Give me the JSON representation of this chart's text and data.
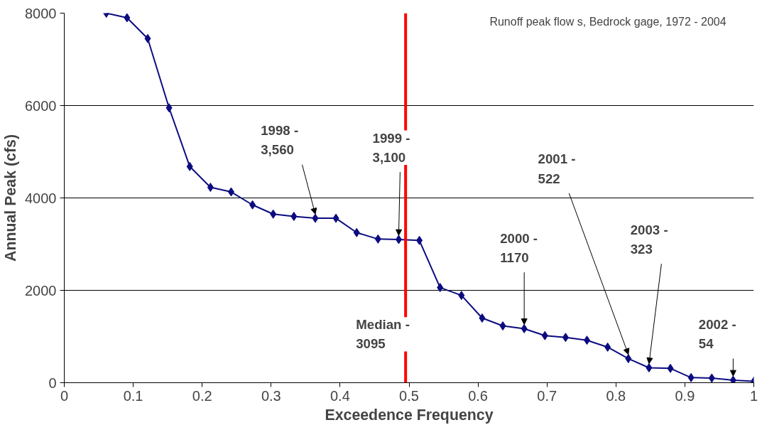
{
  "chart_data": {
    "type": "line",
    "title": "Runoff peak flow s, Bedrock gage, 1972 - 2004",
    "xlabel": "Exceedence Frequency",
    "ylabel": "Annual Peak (cfs)",
    "x": [
      0.061,
      0.091,
      0.121,
      0.152,
      0.182,
      0.212,
      0.242,
      0.273,
      0.303,
      0.333,
      0.364,
      0.394,
      0.424,
      0.455,
      0.485,
      0.515,
      0.545,
      0.576,
      0.606,
      0.636,
      0.667,
      0.697,
      0.727,
      0.758,
      0.788,
      0.818,
      0.848,
      0.879,
      0.909,
      0.939,
      0.97,
      1.0
    ],
    "series": [
      {
        "color": "#0c0c80",
        "values": [
          8000,
          7900,
          7450,
          5950,
          4680,
          4230,
          4130,
          3850,
          3650,
          3600,
          3560,
          3560,
          3250,
          3110,
          3100,
          3080,
          2060,
          1890,
          1400,
          1230,
          1170,
          1020,
          980,
          920,
          770,
          522,
          323,
          310,
          110,
          100,
          54,
          30
        ]
      }
    ],
    "xlim": [
      0,
      1
    ],
    "xticks": [
      0,
      0.1,
      0.2,
      0.3,
      0.4,
      0.5,
      0.6,
      0.7,
      0.8,
      0.9,
      1
    ],
    "ylim": [
      0,
      8000
    ],
    "yticks": [
      0,
      2000,
      4000,
      6000,
      8000
    ],
    "grid": "y",
    "marker": "diamond",
    "line_style": "solid",
    "ref_lines": [
      {
        "axis": "x",
        "value": 0.495,
        "label": "Median - 3095",
        "color": "#ff0000"
      }
    ],
    "annotations": [
      {
        "text": "1998 - 3,560",
        "x": 0.364,
        "y": 3560
      },
      {
        "text": "1999 - 3,100",
        "x": 0.485,
        "y": 3100
      },
      {
        "text": "2000 - 1170",
        "x": 0.667,
        "y": 1170
      },
      {
        "text": "2001 - 522",
        "x": 0.818,
        "y": 522
      },
      {
        "text": "2003 - 323",
        "x": 0.848,
        "y": 323
      },
      {
        "text": "2002 - 54",
        "x": 0.97,
        "y": 54
      }
    ]
  }
}
